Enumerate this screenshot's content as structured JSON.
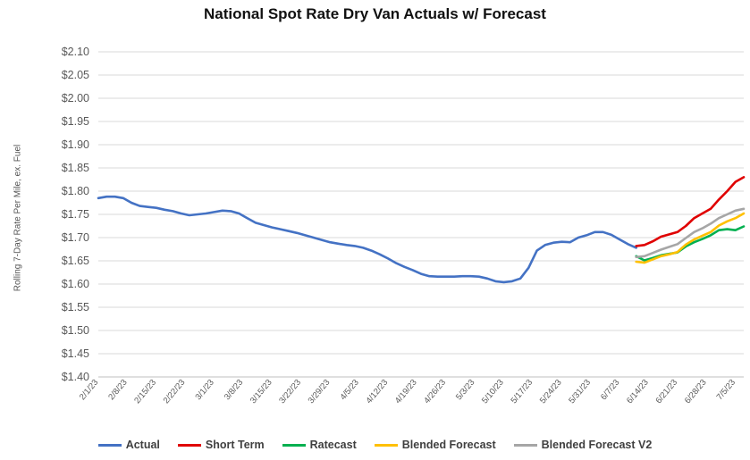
{
  "chart_data": {
    "type": "line",
    "title": "National Spot Rate Dry Van Actuals w/ Forecast",
    "ylabel": "Rolling 7-Day Rate Per Mile, ex. Fuel",
    "xlabel": "",
    "ylim": [
      1.4,
      2.1
    ],
    "yticks": [
      "$1.40",
      "$1.45",
      "$1.50",
      "$1.55",
      "$1.60",
      "$1.65",
      "$1.70",
      "$1.75",
      "$1.80",
      "$1.85",
      "$1.90",
      "$1.95",
      "$2.00",
      "$2.05",
      "$2.10"
    ],
    "ytick_values": [
      1.4,
      1.45,
      1.5,
      1.55,
      1.6,
      1.65,
      1.7,
      1.75,
      1.8,
      1.85,
      1.9,
      1.95,
      2.0,
      2.05,
      2.1
    ],
    "xticks": [
      "2/1/23",
      "2/8/23",
      "2/15/23",
      "2/22/23",
      "3/1/23",
      "3/8/23",
      "3/15/23",
      "3/22/23",
      "3/29/23",
      "4/5/23",
      "4/12/23",
      "4/19/23",
      "4/26/23",
      "5/3/23",
      "5/10/23",
      "5/17/23",
      "5/24/23",
      "5/31/23",
      "6/7/23",
      "6/14/23",
      "6/21/23",
      "6/28/23",
      "7/5/23"
    ],
    "xtick_days": [
      0,
      7,
      14,
      21,
      28,
      35,
      42,
      49,
      56,
      63,
      70,
      77,
      84,
      91,
      98,
      105,
      112,
      119,
      126,
      133,
      140,
      147,
      154
    ],
    "x_range_days": [
      0,
      156
    ],
    "grid": true,
    "legend_position": "bottom",
    "series": [
      {
        "name": "Actual",
        "color": "#4472c4",
        "x": [
          0,
          2,
          4,
          6,
          8,
          10,
          12,
          14,
          16,
          18,
          20,
          22,
          24,
          26,
          28,
          30,
          32,
          34,
          36,
          38,
          40,
          42,
          44,
          46,
          48,
          50,
          52,
          54,
          56,
          58,
          60,
          62,
          64,
          66,
          68,
          70,
          72,
          74,
          76,
          78,
          80,
          82,
          84,
          86,
          88,
          90,
          92,
          94,
          96,
          98,
          100,
          102,
          104,
          106,
          108,
          110,
          112,
          114,
          116,
          118,
          120,
          122,
          124,
          126,
          128,
          130
        ],
        "y": [
          1.785,
          1.788,
          1.788,
          1.785,
          1.775,
          1.768,
          1.766,
          1.764,
          1.76,
          1.757,
          1.752,
          1.748,
          1.75,
          1.752,
          1.755,
          1.758,
          1.757,
          1.752,
          1.742,
          1.732,
          1.727,
          1.722,
          1.718,
          1.714,
          1.71,
          1.705,
          1.7,
          1.695,
          1.69,
          1.687,
          1.684,
          1.682,
          1.678,
          1.672,
          1.664,
          1.655,
          1.645,
          1.637,
          1.63,
          1.622,
          1.617,
          1.616,
          1.616,
          1.616,
          1.617,
          1.617,
          1.616,
          1.612,
          1.606,
          1.604,
          1.606,
          1.612,
          1.635,
          1.672,
          1.684,
          1.689,
          1.691,
          1.69,
          1.7,
          1.705,
          1.712,
          1.712,
          1.706,
          1.696,
          1.686,
          1.678
        ]
      },
      {
        "name": "Short Term",
        "color": "#e00000",
        "x": [
          130,
          132,
          134,
          136,
          138,
          140,
          142,
          144,
          146,
          148,
          150,
          152,
          154,
          156
        ],
        "y": [
          1.682,
          1.684,
          1.692,
          1.702,
          1.707,
          1.712,
          1.725,
          1.742,
          1.752,
          1.762,
          1.782,
          1.8,
          1.82,
          1.83
        ]
      },
      {
        "name": "Ratecast",
        "color": "#00b050",
        "x": [
          130,
          132,
          134,
          136,
          138,
          140,
          142,
          144,
          146,
          148,
          150,
          152,
          154,
          156
        ],
        "y": [
          1.66,
          1.651,
          1.656,
          1.662,
          1.665,
          1.668,
          1.681,
          1.69,
          1.697,
          1.705,
          1.716,
          1.718,
          1.716,
          1.724
        ]
      },
      {
        "name": "Blended Forecast",
        "color": "#ffc000",
        "x": [
          130,
          132,
          134,
          136,
          138,
          140,
          142,
          144,
          146,
          148,
          150,
          152,
          154,
          156
        ],
        "y": [
          1.648,
          1.646,
          1.653,
          1.66,
          1.664,
          1.669,
          1.685,
          1.696,
          1.704,
          1.712,
          1.726,
          1.735,
          1.742,
          1.752
        ]
      },
      {
        "name": "Blended Forecast V2",
        "color": "#a6a6a6",
        "x": [
          130,
          132,
          134,
          136,
          138,
          140,
          142,
          144,
          146,
          148,
          150,
          152,
          154,
          156
        ],
        "y": [
          1.658,
          1.66,
          1.667,
          1.674,
          1.68,
          1.686,
          1.699,
          1.712,
          1.72,
          1.73,
          1.742,
          1.75,
          1.758,
          1.762
        ]
      }
    ]
  }
}
